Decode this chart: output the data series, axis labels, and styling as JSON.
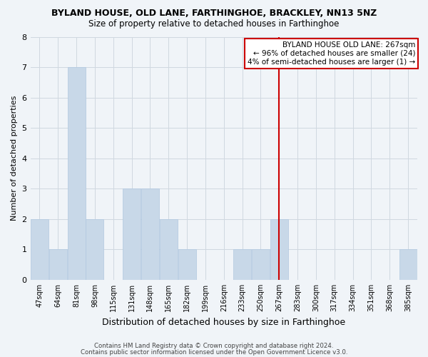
{
  "title": "BYLAND HOUSE, OLD LANE, FARTHINGHOE, BRACKLEY, NN13 5NZ",
  "subtitle": "Size of property relative to detached houses in Farthinghoe",
  "xlabel": "Distribution of detached houses by size in Farthinghoe",
  "ylabel": "Number of detached properties",
  "footer_line1": "Contains HM Land Registry data © Crown copyright and database right 2024.",
  "footer_line2": "Contains public sector information licensed under the Open Government Licence v3.0.",
  "categories": [
    "47sqm",
    "64sqm",
    "81sqm",
    "98sqm",
    "115sqm",
    "131sqm",
    "148sqm",
    "165sqm",
    "182sqm",
    "199sqm",
    "216sqm",
    "233sqm",
    "250sqm",
    "267sqm",
    "283sqm",
    "300sqm",
    "317sqm",
    "334sqm",
    "351sqm",
    "368sqm",
    "385sqm"
  ],
  "values": [
    2,
    1,
    7,
    2,
    0,
    3,
    3,
    2,
    1,
    0,
    0,
    1,
    1,
    2,
    0,
    0,
    0,
    0,
    0,
    0,
    1
  ],
  "bar_color": "#c8d8e8",
  "bar_edge_color": "#b0c8e0",
  "highlight_index": 13,
  "highlight_line_color": "#cc0000",
  "annotation_title": "BYLAND HOUSE OLD LANE: 267sqm",
  "annotation_line1": "← 96% of detached houses are smaller (24)",
  "annotation_line2": "4% of semi-detached houses are larger (1) →",
  "annotation_box_color": "#cc0000",
  "ylim": [
    0,
    8
  ],
  "yticks": [
    0,
    1,
    2,
    3,
    4,
    5,
    6,
    7,
    8
  ],
  "background_color": "#f0f4f8",
  "grid_color": "#d0d8e0"
}
